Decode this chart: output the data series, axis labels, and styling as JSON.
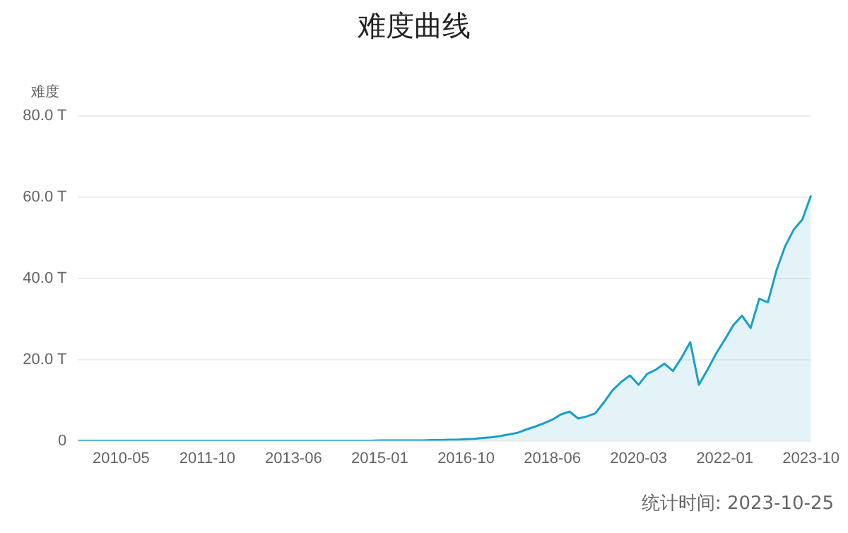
{
  "chart_data": {
    "type": "area",
    "title": "难度曲线",
    "ylabel": "难度",
    "categories": [
      null,
      null,
      null,
      null,
      null,
      "2010-05",
      null,
      null,
      null,
      null,
      null,
      null,
      null,
      null,
      null,
      "2011-10",
      null,
      null,
      null,
      null,
      null,
      null,
      null,
      null,
      null,
      "2013-06",
      null,
      null,
      null,
      null,
      null,
      null,
      null,
      null,
      null,
      "2015-01",
      null,
      null,
      null,
      null,
      null,
      null,
      null,
      null,
      null,
      "2016-10",
      null,
      null,
      null,
      null,
      null,
      null,
      null,
      null,
      null,
      "2018-06",
      null,
      null,
      null,
      null,
      null,
      null,
      null,
      null,
      null,
      "2020-03",
      null,
      null,
      null,
      null,
      null,
      null,
      null,
      null,
      null,
      "2022-01",
      null,
      null,
      null,
      null,
      null,
      null,
      null,
      null,
      null,
      "2023-10"
    ],
    "series": [
      {
        "color": "#1a9fc9",
        "values": [
          0,
          0,
          0,
          0,
          0,
          0,
          0,
          0,
          0,
          0,
          0,
          0,
          0,
          0,
          0,
          0,
          0,
          0,
          0,
          0,
          0,
          0,
          0,
          0,
          0,
          0,
          0,
          0,
          0,
          0,
          0,
          0,
          0,
          0,
          0,
          0.1,
          0.1,
          0.1,
          0.1,
          0.1,
          0.1,
          0.2,
          0.2,
          0.3,
          0.3,
          0.4,
          0.5,
          0.7,
          0.9,
          1.2,
          1.6,
          2.0,
          2.8,
          3.5,
          4.3,
          5.2,
          6.5,
          7.2,
          5.5,
          6.0,
          6.8,
          9.5,
          12.5,
          14.5,
          16.1,
          13.8,
          16.5,
          17.5,
          19.0,
          17.2,
          20.5,
          24.3,
          13.8,
          17.5,
          21.5,
          24.9,
          28.5,
          30.8,
          27.8,
          35.0,
          34.1,
          42.0,
          47.9,
          52.0,
          54.5,
          60.4
        ]
      }
    ],
    "ylim": [
      0,
      80
    ],
    "yticks": [
      0,
      {
        "value": 20,
        "label": "20.0 T"
      },
      {
        "value": 40,
        "label": "40.0 T"
      },
      {
        "value": 60,
        "label": "60.0 T"
      },
      {
        "value": 80,
        "label": "80.0 T"
      }
    ],
    "grid": "y",
    "legend": false,
    "marker": "none",
    "annotations": [
      "统计时间: 2023-10-25"
    ]
  }
}
